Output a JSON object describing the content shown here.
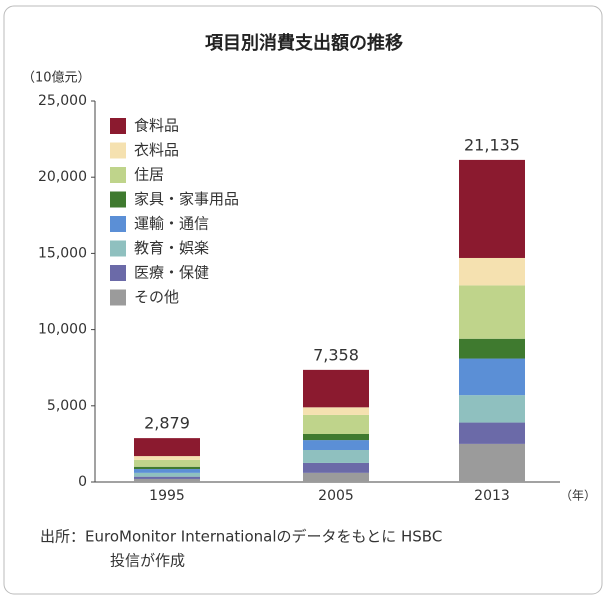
{
  "chart_data": {
    "type": "stacked_bar",
    "title": "項目別消費支出額の推移",
    "y_unit": "（10億元）",
    "x_unit": "（年）",
    "source": [
      "出所：EuroMonitor Internationalのデータをもとに HSBC",
      "投信が作成"
    ],
    "categories": [
      "1995",
      "2005",
      "2013"
    ],
    "series": [
      {
        "name": "その他",
        "color": "#9b9b9b",
        "values": [
          200,
          600,
          2500
        ]
      },
      {
        "name": "医療・保健",
        "color": "#6b6aa8",
        "values": [
          150,
          650,
          1400
        ]
      },
      {
        "name": "教育・娯楽",
        "color": "#8fc0bf",
        "values": [
          250,
          850,
          1800
        ]
      },
      {
        "name": "運輸・通信",
        "color": "#5b8fd6",
        "values": [
          250,
          650,
          2400
        ]
      },
      {
        "name": "家具・家事用品",
        "color": "#3f7a2f",
        "values": [
          150,
          400,
          1300
        ]
      },
      {
        "name": "住居",
        "color": "#bfd48b",
        "values": [
          450,
          1250,
          3500
        ]
      },
      {
        "name": "衣料品",
        "color": "#f5e1b0",
        "values": [
          250,
          500,
          1800
        ]
      },
      {
        "name": "食料品",
        "color": "#8b1a2f",
        "values": [
          1179,
          2458,
          6435
        ]
      }
    ],
    "totals": [
      2879,
      7358,
      21135
    ],
    "total_labels": [
      "2,879",
      "7,358",
      "21,135"
    ],
    "ylim": [
      0,
      25000
    ],
    "yticks": [
      0,
      {
        "value": 5000,
        "label": "5,000"
      },
      {
        "value": 10000,
        "label": "10,000"
      },
      {
        "value": 15000,
        "label": "15,000"
      },
      {
        "value": 20000,
        "label": "20,000"
      },
      {
        "value": 25000,
        "label": "25,000"
      }
    ]
  }
}
